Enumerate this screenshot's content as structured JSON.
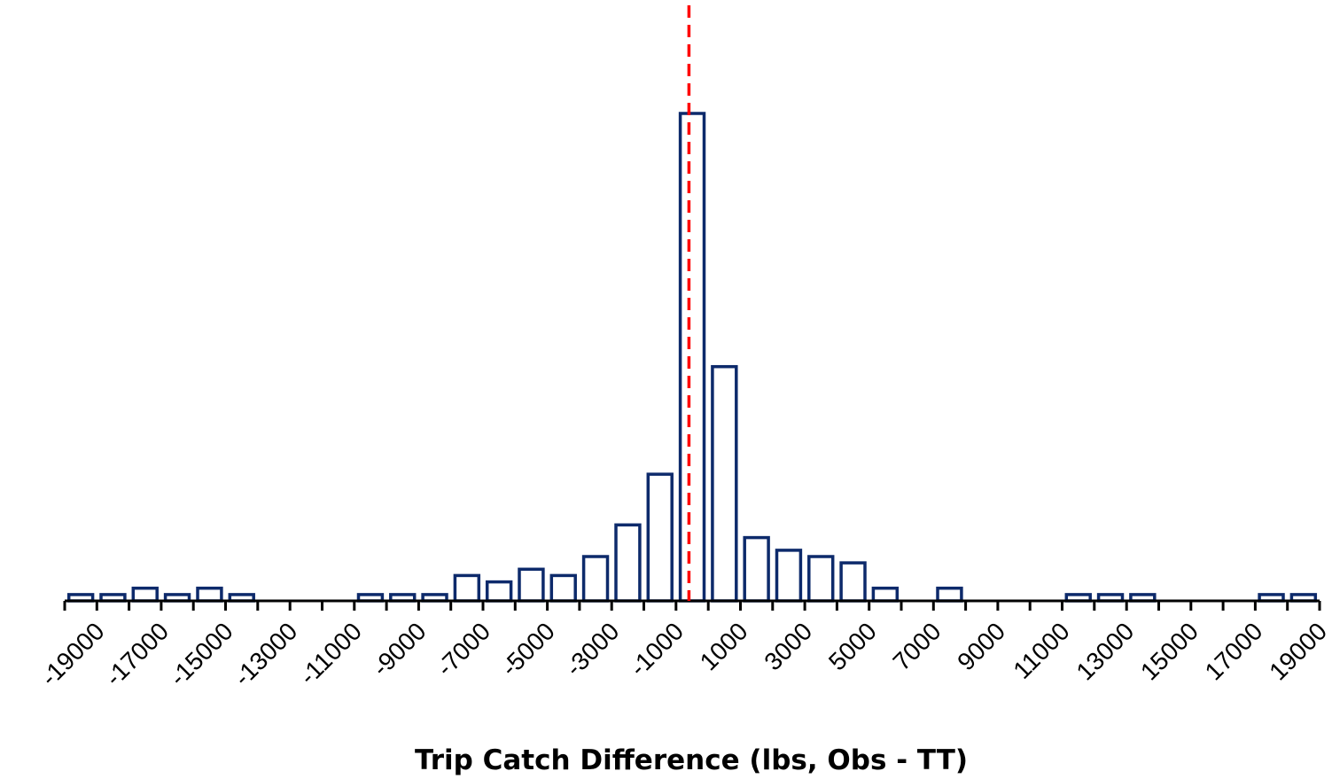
{
  "chart_data": {
    "type": "bar",
    "title": "",
    "xlabel": "Trip Catch Difference (lbs, Obs - TT)",
    "ylabel": "",
    "bin_width": 1000,
    "x_tick_labels": [
      "-19000",
      "-17000",
      "-15000",
      "-13000",
      "-11000",
      "-9000",
      "-7000",
      "-5000",
      "-3000",
      "-1000",
      "1000",
      "3000",
      "5000",
      "7000",
      "9000",
      "11000",
      "13000",
      "15000",
      "17000",
      "19000"
    ],
    "x_tick_values": [
      -19000,
      -17000,
      -15000,
      -13000,
      -11000,
      -9000,
      -7000,
      -5000,
      -3000,
      -1000,
      1000,
      3000,
      5000,
      7000,
      9000,
      11000,
      13000,
      15000,
      17000,
      19000
    ],
    "xlim": [
      -19500,
      19500
    ],
    "ylim": [
      0,
      78
    ],
    "bins": [
      -19000,
      -18000,
      -17000,
      -16000,
      -15000,
      -14000,
      -13000,
      -12000,
      -11000,
      -10000,
      -9000,
      -8000,
      -7000,
      -6000,
      -5000,
      -4000,
      -3000,
      -2000,
      -1000,
      0,
      1000,
      2000,
      3000,
      4000,
      5000,
      6000,
      7000,
      8000,
      9000,
      10000,
      11000,
      12000,
      13000,
      14000,
      15000,
      16000,
      17000,
      18000,
      19000
    ],
    "values": [
      1,
      1,
      2,
      1,
      2,
      1,
      0,
      0,
      0,
      1,
      1,
      1,
      4,
      3,
      5,
      4,
      7,
      12,
      20,
      77,
      37,
      10,
      8,
      7,
      6,
      2,
      0,
      2,
      0,
      0,
      0,
      1,
      1,
      1,
      0,
      0,
      0,
      1,
      1
    ],
    "reference_line": {
      "x": -100,
      "style": "dashed",
      "color": "#ff0000"
    },
    "grid": false,
    "legend": "none"
  },
  "colors": {
    "bar_stroke": "#0d2a6b",
    "bar_fill": "#ffffff",
    "axis": "#000000"
  }
}
